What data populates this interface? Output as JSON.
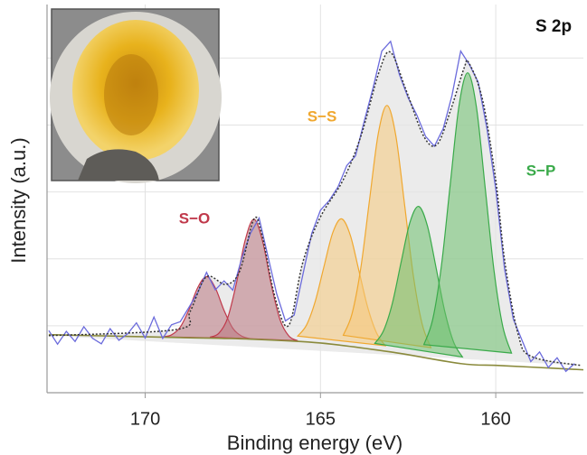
{
  "chart_data": {
    "type": "xps",
    "annotation": "S 2p",
    "xlabel": "Binding energy (eV)",
    "ylabel": "Intensity (a.u.)",
    "xlim": [
      172.8,
      157.5
    ],
    "ylim": [
      0,
      100
    ],
    "xticks": [
      170,
      165,
      160
    ],
    "grid": true,
    "data": {
      "color": "#6b6bdc",
      "x": [
        172.75,
        172.5,
        172.25,
        172.0,
        171.75,
        171.5,
        171.25,
        171.0,
        170.75,
        170.5,
        170.25,
        170.0,
        169.75,
        169.5,
        169.25,
        169.0,
        168.75,
        168.5,
        168.25,
        168.0,
        167.75,
        167.5,
        167.25,
        167.0,
        166.75,
        166.5,
        166.25,
        166.0,
        165.75,
        165.5,
        165.25,
        165.0,
        164.75,
        164.5,
        164.25,
        164.0,
        163.75,
        163.5,
        163.25,
        163.0,
        162.75,
        162.5,
        162.25,
        162.0,
        161.75,
        161.5,
        161.25,
        161.0,
        160.75,
        160.5,
        160.25,
        160.0,
        159.75,
        159.5,
        159.25,
        159.0,
        158.75,
        158.5,
        158.25,
        158.0,
        157.75
      ],
      "values": [
        16,
        12.5,
        15.8,
        13.2,
        17.0,
        14.0,
        12.6,
        16.5,
        13.5,
        15.2,
        18.0,
        14.1,
        19.5,
        14.0,
        17.5,
        18.3,
        22.0,
        25.8,
        31.0,
        26.5,
        28.8,
        26.4,
        34.5,
        41.0,
        45.0,
        35.2,
        25.5,
        18.5,
        20.0,
        30.5,
        41.0,
        47.0,
        49.5,
        53.0,
        58.5,
        61.0,
        70.0,
        78.5,
        88.0,
        90.5,
        82.0,
        76.0,
        71.5,
        66.0,
        63.5,
        68.0,
        76.5,
        88.0,
        84.5,
        80.0,
        68.0,
        52.5,
        32.0,
        19.0,
        13.5,
        8.0,
        10.5,
        6.5,
        9.0,
        5.5,
        7.5
      ]
    },
    "fit": {
      "color": "#333333",
      "fill": "#e4e4e4",
      "x": [
        172.75,
        169.1,
        168.72,
        168.26,
        167.7,
        167.3,
        166.9,
        166.67,
        166.28,
        165.9,
        165.5,
        165.0,
        164.36,
        163.85,
        163.33,
        163.0,
        162.56,
        162.05,
        161.67,
        161.28,
        160.9,
        160.77,
        160.38,
        160.0,
        159.74,
        159.36,
        158.97,
        157.56
      ],
      "values": [
        14.7,
        16.3,
        20.9,
        29.8,
        27.9,
        31.4,
        44.7,
        40.7,
        24.0,
        17.4,
        33.7,
        45.3,
        54.7,
        66.0,
        82.6,
        87.7,
        78.0,
        66.0,
        64.0,
        73.0,
        83.7,
        85.0,
        75.6,
        54.7,
        33.7,
        15.0,
        9.3,
        7.0
      ]
    },
    "background": {
      "color": "#8a8a3c",
      "x": [
        172.75,
        171,
        169,
        167,
        165,
        163,
        161,
        160,
        159,
        157.5
      ],
      "values": [
        14.95,
        14.6,
        14.2,
        13.8,
        12.8,
        10.5,
        7.5,
        7.05,
        6.6,
        5.9
      ]
    },
    "series": [
      {
        "name": "S−O",
        "color": "#c0394b",
        "fill": "#b9767f",
        "peaks": [
          {
            "x": [
              169.5,
              169.25,
              169.0,
              168.75,
              168.5,
              168.25,
              168.0,
              167.75,
              167.5,
              167.25,
              167.0
            ],
            "values": [
              14.4,
              14.9,
              16.9,
              21.4,
              27.1,
              29.9,
              27.0,
              21.2,
              16.6,
              14.6,
              13.9
            ]
          },
          {
            "x": [
              168.15,
              167.9,
              167.65,
              167.4,
              167.15,
              166.9,
              166.65,
              166.4,
              166.15,
              165.9,
              165.65
            ],
            "values": [
              14.3,
              15.3,
              19.2,
              28.1,
              39.2,
              44.7,
              39.0,
              27.7,
              18.7,
              14.6,
              13.4
            ]
          }
        ]
      },
      {
        "name": "S−S",
        "color": "#f0a830",
        "fill": "#f5c87a",
        "peaks": [
          {
            "x": [
              165.65,
              165.4,
              165.15,
              164.9,
              164.65,
              164.4,
              164.15,
              163.9,
              163.65,
              163.4,
              163.15
            ],
            "values": [
              14.6,
              17.4,
              23.5,
              32.5,
              41.2,
              44.8,
              40.6,
              31.3,
              21.9,
              15.4,
              12.1
            ]
          },
          {
            "x": [
              164.35,
              164.1,
              163.85,
              163.6,
              163.35,
              163.1,
              162.85,
              162.6,
              162.35,
              162.1,
              161.85
            ],
            "values": [
              14.8,
              20.3,
              32.1,
              49.7,
              66.8,
              74.0,
              66.2,
              48.4,
              30.1,
              17.7,
              11.6
            ]
          }
        ]
      },
      {
        "name": "S−P",
        "color": "#3aaa4a",
        "fill": "#6cbf6c",
        "peaks": [
          {
            "x": [
              163.45,
              163.2,
              162.95,
              162.7,
              162.45,
              162.2,
              161.95,
              161.7,
              161.45,
              161.2,
              160.95
            ],
            "values": [
              12.7,
              16.0,
              23.0,
              33.6,
              43.8,
              48.0,
              43.0,
              32.1,
              20.8,
              13.0,
              9.2
            ]
          },
          {
            "x": [
              162.05,
              161.8,
              161.55,
              161.3,
              161.05,
              160.8,
              160.55,
              160.3,
              160.05,
              159.8,
              159.55
            ],
            "values": [
              12.4,
              18.8,
              32.7,
              53.5,
              73.8,
              82.4,
              73.5,
              52.7,
              31.5,
              17.1,
              10.2
            ]
          }
        ]
      }
    ]
  }
}
